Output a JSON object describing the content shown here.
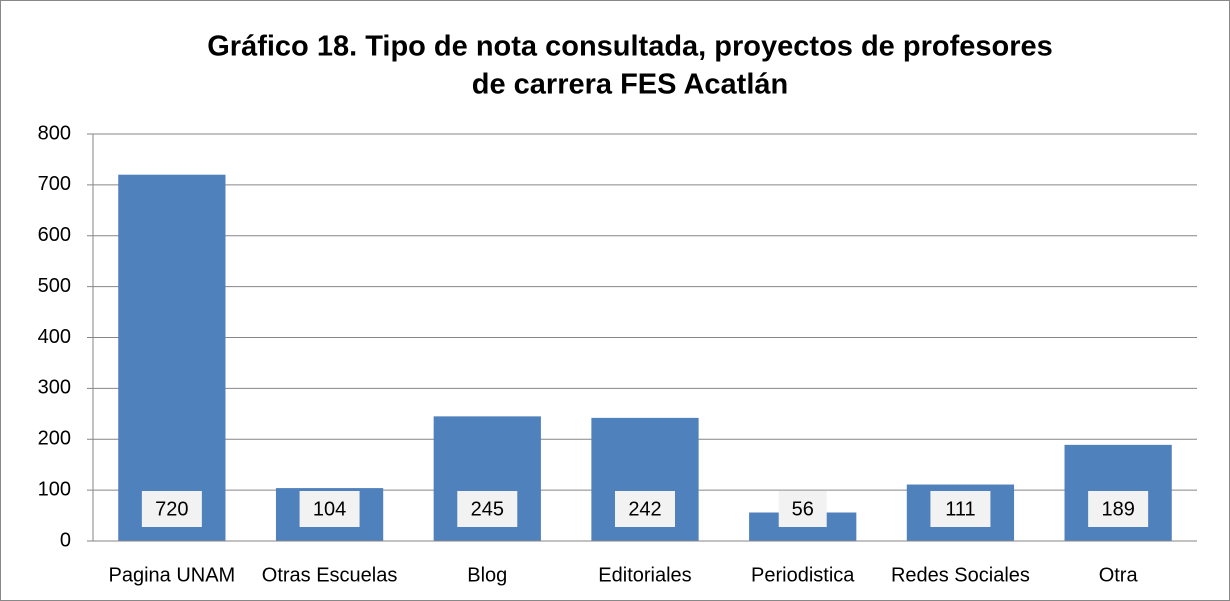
{
  "chart_data": {
    "type": "bar",
    "title": [
      "Gráfico 18. Tipo de nota consultada, proyectos de profesores",
      "de carrera FES Acatlán"
    ],
    "categories": [
      "Pagina UNAM",
      "Otras Escuelas",
      "Blog",
      "Editoriales",
      "Periodistica",
      "Redes Sociales",
      "Otra"
    ],
    "values": [
      720,
      104,
      245,
      242,
      56,
      111,
      189
    ],
    "color": "#4f81bd",
    "ylim": [
      0,
      800
    ],
    "yticks": [
      0,
      100,
      200,
      300,
      400,
      500,
      600,
      700,
      800
    ],
    "grid": true
  }
}
